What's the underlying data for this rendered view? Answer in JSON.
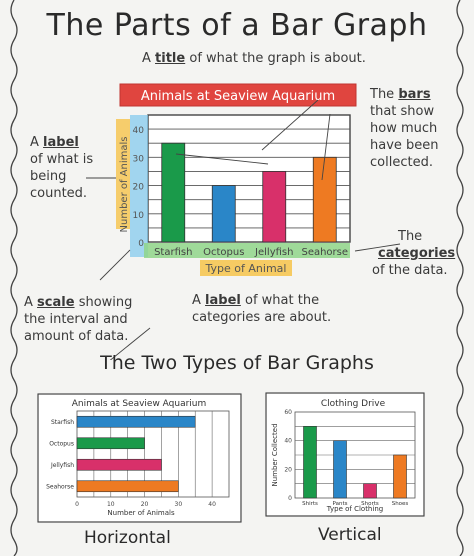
{
  "title": "The Parts of a Bar Graph",
  "annotations": {
    "title_prefix": "A",
    "title_word": "title",
    "title_suffix": "of what the graph is about.",
    "label_a": "A",
    "label_word": "label",
    "label_rest1": "of what is",
    "label_rest2": "being",
    "label_rest3": "counted.",
    "bars_the": "The",
    "bars_word": "bars",
    "bars_rest1": "that show",
    "bars_rest2": "how much",
    "bars_rest3": "have been",
    "bars_rest4": "collected.",
    "cat_the": "The",
    "cat_word": "categories",
    "cat_rest": "of the data.",
    "scale_a": "A",
    "scale_word": "scale",
    "scale_rest1": "showing",
    "scale_rest2": "the interval and",
    "scale_rest3": "amount of data.",
    "catlabel_a": "A",
    "catlabel_word": "label",
    "catlabel_rest1": "of what the",
    "catlabel_rest2": "categories are about."
  },
  "section_title": "The Two Types of Bar Graphs",
  "horizontal_label": "Horizontal",
  "vertical_label": "Vertical",
  "chart_data": [
    {
      "type": "bar",
      "title": "Animals at Seaview Aquarium",
      "categories": [
        "Starfish",
        "Octopus",
        "Jellyfish",
        "Seahorse"
      ],
      "values": [
        35,
        20,
        25,
        30
      ],
      "colors": [
        "#1a9a4a",
        "#2a86c8",
        "#d8306a",
        "#ee7a22"
      ],
      "ylabel": "Number of Animals",
      "xlabel": "Type of Animal",
      "yticks": [
        "0",
        "10",
        "20",
        "30",
        "40"
      ],
      "ylim": [
        0,
        45
      ],
      "orientation": "vertical"
    },
    {
      "type": "bar",
      "title": "Animals at Seaview Aquarium",
      "categories": [
        "Starfish",
        "Octopus",
        "Jellyfish",
        "Seahorse"
      ],
      "values": [
        35,
        20,
        25,
        30
      ],
      "colors": [
        "#2a86c8",
        "#1a9a4a",
        "#d8306a",
        "#ee7a22"
      ],
      "xlabel": "Number of Animals",
      "xticks": [
        "0",
        "10",
        "20",
        "30",
        "40"
      ],
      "xlim": [
        0,
        45
      ],
      "orientation": "horizontal"
    },
    {
      "type": "bar",
      "title": "Clothing Drive",
      "categories": [
        "Shirts",
        "Pants",
        "Shorts",
        "Shoes"
      ],
      "values": [
        50,
        40,
        10,
        30
      ],
      "colors": [
        "#1a9a4a",
        "#2a86c8",
        "#d8306a",
        "#ee7a22"
      ],
      "ylabel": "Number Collected",
      "xlabel": "Type of Clothing",
      "yticks": [
        "0",
        "20",
        "40",
        "60"
      ],
      "ylim": [
        0,
        60
      ],
      "orientation": "vertical"
    }
  ]
}
